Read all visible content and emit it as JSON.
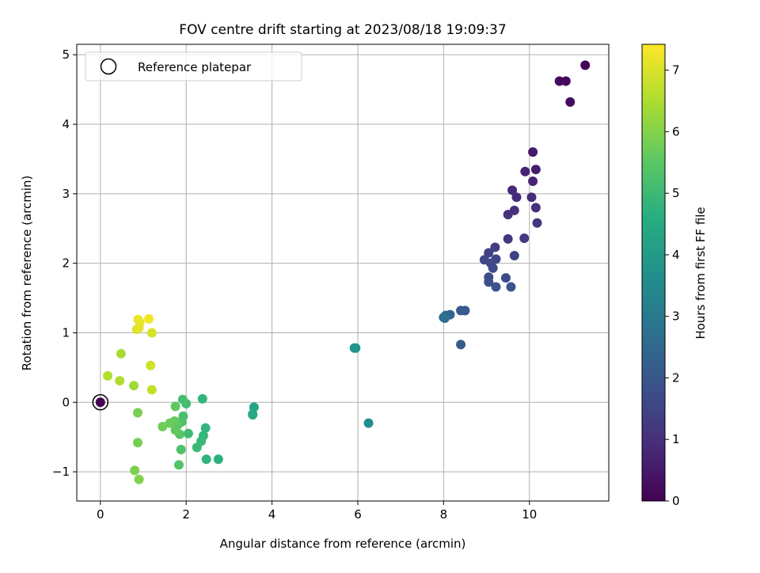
{
  "chart_data": {
    "type": "scatter",
    "title": "FOV centre drift starting at 2023/08/18 19:09:37",
    "xlabel": "Angular distance from reference (arcmin)",
    "ylabel": "Rotation from reference (arcmin)",
    "xlim": [
      -0.55,
      11.85
    ],
    "ylim": [
      -1.42,
      5.15
    ],
    "xticks": [
      0,
      2,
      4,
      6,
      8,
      10
    ],
    "yticks": [
      -1,
      0,
      1,
      2,
      3,
      4,
      5
    ],
    "xtick_labels": [
      "0",
      "2",
      "4",
      "6",
      "8",
      "10"
    ],
    "ytick_labels": [
      "−1",
      "0",
      "1",
      "2",
      "3",
      "4",
      "5"
    ],
    "grid": true,
    "legend": {
      "placement": "top-left",
      "entries": [
        "Reference platepar"
      ]
    },
    "reference_point": {
      "label": "Reference platepar",
      "x": 0,
      "y": 0
    },
    "colormap": "viridis",
    "colorbar": {
      "label": "Hours from first FF file",
      "min": 0,
      "max": 7.42,
      "ticks": [
        0,
        1,
        2,
        3,
        4,
        5,
        6,
        7
      ],
      "tick_labels": [
        "0",
        "1",
        "2",
        "3",
        "4",
        "5",
        "6",
        "7"
      ]
    },
    "points": [
      {
        "x": 0.0,
        "y": 0.0,
        "c": 0.0
      },
      {
        "x": 11.3,
        "y": 4.85,
        "c": 0.05
      },
      {
        "x": 10.7,
        "y": 4.62,
        "c": 0.15
      },
      {
        "x": 10.85,
        "y": 4.62,
        "c": 0.2
      },
      {
        "x": 10.95,
        "y": 4.32,
        "c": 0.25
      },
      {
        "x": 10.08,
        "y": 3.6,
        "c": 0.5
      },
      {
        "x": 10.15,
        "y": 3.35,
        "c": 0.6
      },
      {
        "x": 9.9,
        "y": 3.32,
        "c": 0.7
      },
      {
        "x": 10.08,
        "y": 3.18,
        "c": 0.75
      },
      {
        "x": 9.6,
        "y": 3.05,
        "c": 0.85
      },
      {
        "x": 9.7,
        "y": 2.95,
        "c": 0.9
      },
      {
        "x": 10.05,
        "y": 2.95,
        "c": 0.95
      },
      {
        "x": 10.15,
        "y": 2.8,
        "c": 1.0
      },
      {
        "x": 9.65,
        "y": 2.76,
        "c": 1.05
      },
      {
        "x": 9.5,
        "y": 2.7,
        "c": 1.1
      },
      {
        "x": 10.18,
        "y": 2.58,
        "c": 1.15
      },
      {
        "x": 9.5,
        "y": 2.35,
        "c": 1.2
      },
      {
        "x": 9.88,
        "y": 2.36,
        "c": 1.25
      },
      {
        "x": 9.2,
        "y": 2.23,
        "c": 1.35
      },
      {
        "x": 9.05,
        "y": 2.15,
        "c": 1.4
      },
      {
        "x": 9.65,
        "y": 2.11,
        "c": 1.45
      },
      {
        "x": 9.22,
        "y": 2.06,
        "c": 1.5
      },
      {
        "x": 8.95,
        "y": 2.05,
        "c": 1.55
      },
      {
        "x": 9.1,
        "y": 2.0,
        "c": 1.6
      },
      {
        "x": 9.15,
        "y": 1.93,
        "c": 1.65
      },
      {
        "x": 9.05,
        "y": 1.8,
        "c": 1.7
      },
      {
        "x": 9.45,
        "y": 1.79,
        "c": 1.75
      },
      {
        "x": 9.05,
        "y": 1.73,
        "c": 1.8
      },
      {
        "x": 9.22,
        "y": 1.66,
        "c": 1.85
      },
      {
        "x": 9.57,
        "y": 1.66,
        "c": 1.9
      },
      {
        "x": 8.4,
        "y": 1.32,
        "c": 2.05
      },
      {
        "x": 8.5,
        "y": 1.32,
        "c": 2.1
      },
      {
        "x": 8.4,
        "y": 0.83,
        "c": 2.2
      },
      {
        "x": 8.15,
        "y": 1.26,
        "c": 2.3
      },
      {
        "x": 8.05,
        "y": 1.25,
        "c": 2.45
      },
      {
        "x": 8.0,
        "y": 1.22,
        "c": 2.6
      },
      {
        "x": 8.03,
        "y": 1.21,
        "c": 2.7
      },
      {
        "x": 6.25,
        "y": -0.3,
        "c": 3.6
      },
      {
        "x": 5.95,
        "y": 0.78,
        "c": 3.75
      },
      {
        "x": 5.92,
        "y": 0.78,
        "c": 3.85
      },
      {
        "x": 3.58,
        "y": -0.07,
        "c": 4.3
      },
      {
        "x": 3.55,
        "y": -0.17,
        "c": 4.45
      },
      {
        "x": 3.55,
        "y": -0.18,
        "c": 4.5
      },
      {
        "x": 2.75,
        "y": -0.82,
        "c": 4.7
      },
      {
        "x": 2.47,
        "y": -0.82,
        "c": 4.8
      },
      {
        "x": 2.45,
        "y": -0.37,
        "c": 4.85
      },
      {
        "x": 2.38,
        "y": 0.05,
        "c": 4.9
      },
      {
        "x": 2.4,
        "y": -0.48,
        "c": 4.95
      },
      {
        "x": 2.35,
        "y": -0.56,
        "c": 5.0
      },
      {
        "x": 2.25,
        "y": -0.65,
        "c": 5.05
      },
      {
        "x": 2.05,
        "y": -0.45,
        "c": 5.1
      },
      {
        "x": 2.0,
        "y": -0.02,
        "c": 5.15
      },
      {
        "x": 1.92,
        "y": 0.04,
        "c": 5.2
      },
      {
        "x": 1.93,
        "y": -0.2,
        "c": 5.25
      },
      {
        "x": 1.9,
        "y": -0.28,
        "c": 5.3
      },
      {
        "x": 1.88,
        "y": -0.68,
        "c": 5.35
      },
      {
        "x": 1.83,
        "y": -0.9,
        "c": 5.4
      },
      {
        "x": 1.85,
        "y": -0.46,
        "c": 5.45
      },
      {
        "x": 1.8,
        "y": -0.33,
        "c": 5.5
      },
      {
        "x": 1.75,
        "y": -0.06,
        "c": 5.55
      },
      {
        "x": 1.75,
        "y": -0.4,
        "c": 5.6
      },
      {
        "x": 1.73,
        "y": -0.27,
        "c": 5.65
      },
      {
        "x": 1.62,
        "y": -0.3,
        "c": 5.7
      },
      {
        "x": 1.45,
        "y": -0.35,
        "c": 5.8
      },
      {
        "x": 0.87,
        "y": -0.58,
        "c": 5.85
      },
      {
        "x": 0.87,
        "y": -0.15,
        "c": 5.9
      },
      {
        "x": 0.8,
        "y": -0.98,
        "c": 5.95
      },
      {
        "x": 0.9,
        "y": -1.11,
        "c": 6.0
      },
      {
        "x": 0.78,
        "y": 0.24,
        "c": 6.35
      },
      {
        "x": 0.48,
        "y": 0.7,
        "c": 6.45
      },
      {
        "x": 0.45,
        "y": 0.31,
        "c": 6.55
      },
      {
        "x": 0.17,
        "y": 0.38,
        "c": 6.6
      },
      {
        "x": 1.2,
        "y": 0.18,
        "c": 6.8
      },
      {
        "x": 1.17,
        "y": 0.53,
        "c": 6.9
      },
      {
        "x": 1.2,
        "y": 1.0,
        "c": 7.0
      },
      {
        "x": 0.85,
        "y": 1.05,
        "c": 7.05
      },
      {
        "x": 0.9,
        "y": 1.07,
        "c": 7.1
      },
      {
        "x": 0.92,
        "y": 1.15,
        "c": 7.15
      },
      {
        "x": 0.88,
        "y": 1.19,
        "c": 7.2
      },
      {
        "x": 1.13,
        "y": 1.2,
        "c": 7.3
      }
    ]
  }
}
